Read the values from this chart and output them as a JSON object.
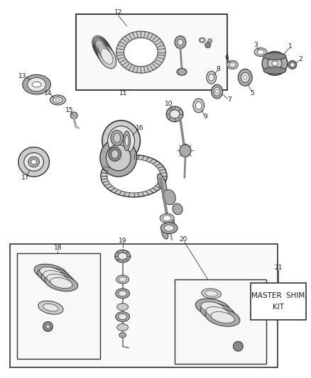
{
  "bg_color": "#f0f0f0",
  "fg_color": "#1a1a1a",
  "white": "#ffffff",
  "gray1": "#888888",
  "gray2": "#aaaaaa",
  "gray3": "#cccccc",
  "gray4": "#e8e8e8",
  "dark": "#333333",
  "master_shim_text": [
    "MASTER  SHIM",
    "KIT"
  ],
  "label_fontsize": 6.5,
  "fig_width": 4.38,
  "fig_height": 5.33
}
